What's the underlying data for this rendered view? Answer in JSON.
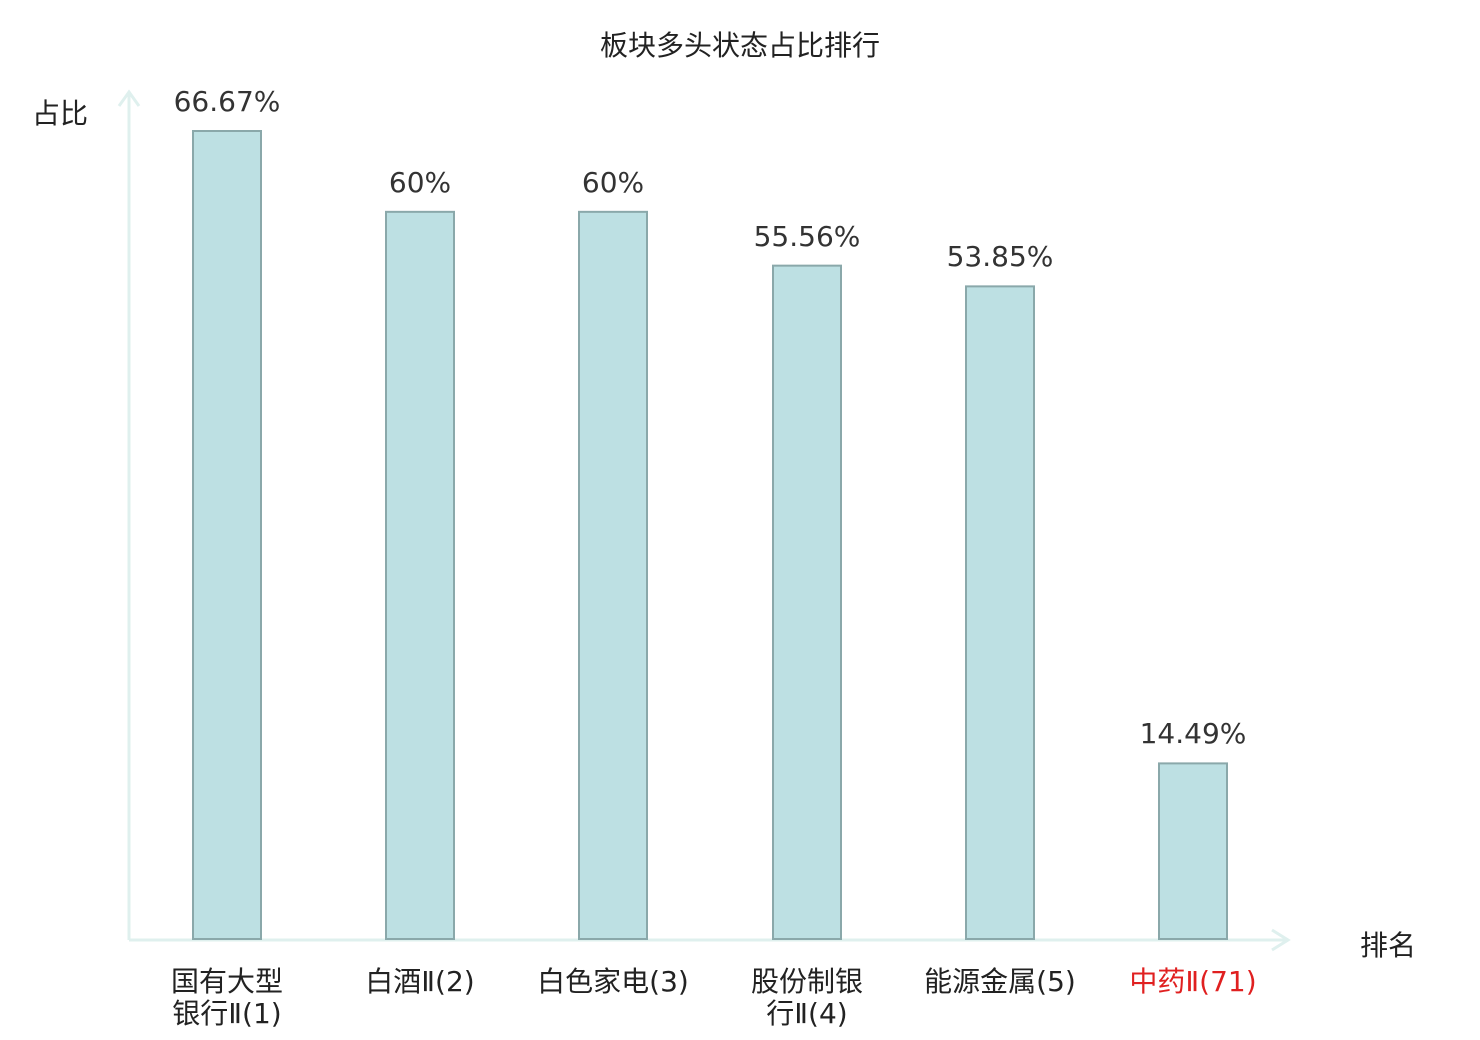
{
  "chart_data": {
    "type": "bar",
    "title": "板块多头状态占比排行",
    "ylabel": "占比",
    "xlabel": "排名",
    "ylim": [
      0,
      70
    ],
    "categories": [
      {
        "line1": "国有大型",
        "line2": "银行Ⅱ(1)",
        "highlight": false
      },
      {
        "line1": "白酒Ⅱ(2)",
        "line2": "",
        "highlight": false
      },
      {
        "line1": "白色家电(3)",
        "line2": "",
        "highlight": false
      },
      {
        "line1": "股份制银",
        "line2": "行Ⅱ(4)",
        "highlight": false
      },
      {
        "line1": "能源金属(5)",
        "line2": "",
        "highlight": false
      },
      {
        "line1": "中药Ⅱ(71)",
        "line2": "",
        "highlight": true
      }
    ],
    "values": [
      66.67,
      60,
      60,
      55.56,
      53.85,
      14.49
    ],
    "value_labels": [
      "66.67%",
      "60%",
      "60%",
      "55.56%",
      "53.85%",
      "14.49%"
    ],
    "colors": {
      "bar_fill": "#bde0e3",
      "bar_stroke": "#8aa8aa",
      "axis": "#dff0ee",
      "highlight": "#e02020"
    }
  }
}
